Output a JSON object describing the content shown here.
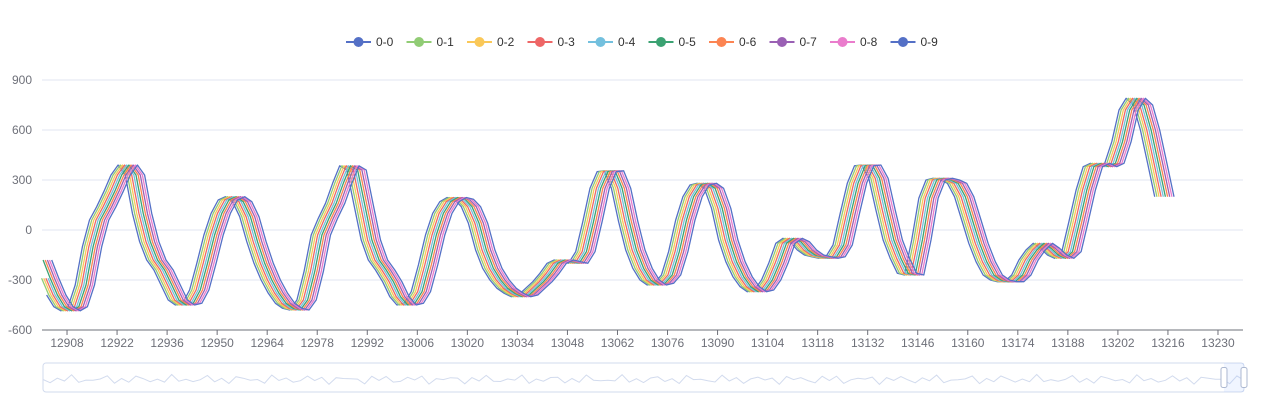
{
  "chart_data": {
    "type": "line",
    "x": [
      12901,
      12903,
      12905,
      12907,
      12909,
      12911,
      12913,
      12915,
      12917,
      12919,
      12921,
      12923,
      12925,
      12927,
      12929,
      12931,
      12933,
      12935,
      12937,
      12939,
      12941,
      12943,
      12945,
      12947,
      12949,
      12951,
      12953,
      12955,
      12957,
      12959,
      12961,
      12963,
      12965,
      12967,
      12969,
      12971,
      12973,
      12975,
      12977,
      12979,
      12981,
      12983,
      12985,
      12987,
      12989,
      12991,
      12993,
      12995,
      12997,
      12999,
      13001,
      13003,
      13005,
      13007,
      13009,
      13011,
      13013,
      13015,
      13017,
      13019,
      13021,
      13023,
      13025,
      13027,
      13029,
      13031,
      13033,
      13035,
      13037,
      13039,
      13041,
      13043,
      13045,
      13047,
      13049,
      13051,
      13053,
      13055,
      13057,
      13059,
      13061,
      13063,
      13065,
      13067,
      13069,
      13071,
      13073,
      13075,
      13077,
      13079,
      13081,
      13083,
      13085,
      13087,
      13089,
      13091,
      13093,
      13095,
      13097,
      13099,
      13101,
      13103,
      13105,
      13107,
      13109,
      13111,
      13113,
      13115,
      13117,
      13119,
      13121,
      13123,
      13125,
      13127,
      13129,
      13131,
      13133,
      13135,
      13137,
      13139,
      13141,
      13143,
      13145,
      13147,
      13149,
      13151,
      13153,
      13155,
      13157,
      13159,
      13161,
      13163,
      13165,
      13167,
      13169,
      13171,
      13173,
      13175,
      13177,
      13179,
      13181,
      13183,
      13185,
      13187,
      13189,
      13191,
      13193,
      13195,
      13197,
      13199,
      13201,
      13203,
      13205,
      13207,
      13209,
      13211,
      13213,
      13215,
      13217,
      13219,
      13221,
      13223,
      13225,
      13227,
      13229,
      13231,
      13233,
      13235,
      13237
    ],
    "base": [
      -180,
      -290,
      -390,
      -460,
      -485,
      -460,
      -330,
      -100,
      60,
      140,
      230,
      330,
      390,
      330,
      100,
      -70,
      -180,
      -240,
      -330,
      -420,
      -450,
      -440,
      -360,
      -200,
      -30,
      100,
      180,
      200,
      170,
      80,
      -70,
      -200,
      -300,
      -380,
      -440,
      -470,
      -480,
      -420,
      -250,
      -30,
      70,
      160,
      280,
      385,
      360,
      150,
      -60,
      -180,
      -240,
      -310,
      -400,
      -450,
      -440,
      -370,
      -210,
      -30,
      100,
      170,
      195,
      185,
      140,
      40,
      -120,
      -230,
      -300,
      -350,
      -380,
      -400,
      -390,
      -350,
      -310,
      -260,
      -200,
      -180,
      -190,
      -200,
      -130,
      50,
      250,
      350,
      355,
      250,
      50,
      -120,
      -230,
      -300,
      -330,
      -320,
      -270,
      -130,
      60,
      200,
      270,
      280,
      250,
      130,
      -60,
      -190,
      -280,
      -340,
      -370,
      -360,
      -300,
      -200,
      -80,
      -50,
      -70,
      -120,
      -150,
      -160,
      -170,
      -160,
      -90,
      100,
      280,
      385,
      390,
      310,
      120,
      -60,
      -170,
      -260,
      -270,
      -60,
      190,
      300,
      310,
      300,
      280,
      200,
      60,
      -80,
      -190,
      -270,
      -300,
      -310,
      -310,
      -270,
      -180,
      -120,
      -80,
      -110,
      -150,
      -170,
      -130,
      50,
      240,
      380,
      400,
      380,
      400,
      530,
      720,
      790,
      750,
      600,
      400,
      200
    ]
  },
  "series": [
    {
      "name": "0-0",
      "color": "#5470c6"
    },
    {
      "name": "0-1",
      "color": "#91cc75"
    },
    {
      "name": "0-2",
      "color": "#fac858"
    },
    {
      "name": "0-3",
      "color": "#ee6666"
    },
    {
      "name": "0-4",
      "color": "#73c0de"
    },
    {
      "name": "0-5",
      "color": "#3ba272"
    },
    {
      "name": "0-6",
      "color": "#fc8452"
    },
    {
      "name": "0-7",
      "color": "#9a60b4"
    },
    {
      "name": "0-8",
      "color": "#ea7ccc"
    },
    {
      "name": "0-9",
      "color": "#5470c6"
    }
  ],
  "axes": {
    "y_ticks": [
      -600,
      -300,
      0,
      300,
      600,
      900
    ],
    "x_ticks": [
      12908,
      12922,
      12936,
      12950,
      12964,
      12978,
      12992,
      13006,
      13020,
      13034,
      13048,
      13062,
      13076,
      13090,
      13104,
      13118,
      13132,
      13146,
      13160,
      13174,
      13188,
      13202,
      13216,
      13230
    ],
    "ylim": [
      -600,
      900
    ],
    "xlim": [
      12901,
      13237
    ]
  },
  "grid": true,
  "legend_position": "top-center",
  "data_zoom": {
    "visible": true,
    "selected_range_percent": [
      98.5,
      100
    ]
  }
}
